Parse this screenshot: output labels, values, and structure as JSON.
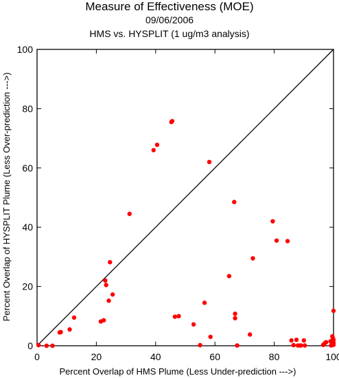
{
  "chart_data": {
    "type": "scatter",
    "title": "Measure of Effectiveness (MOE)",
    "date": "09/06/2006",
    "subtitle": "HMS vs. HYSPLIT  (1 ug/m3 analysis)",
    "xlabel": "Percent Overlap of HMS Plume (Less Under-prediction --->)",
    "ylabel": "Percent Overlap of HYSPLIT Plume (Less Over-prediction --->)",
    "xlim": [
      0,
      100
    ],
    "ylim": [
      0,
      100
    ],
    "xticks": [
      0,
      20,
      40,
      60,
      80,
      100
    ],
    "yticks": [
      0,
      20,
      40,
      60,
      80,
      100
    ],
    "reference_line": "y = x",
    "point_color": "#ff0000",
    "points": [
      [
        0.5,
        0.2
      ],
      [
        3.2,
        0
      ],
      [
        5.2,
        0
      ],
      [
        7.6,
        4.5
      ],
      [
        8.0,
        4.6
      ],
      [
        11.0,
        5.5
      ],
      [
        12.5,
        9.5
      ],
      [
        21.5,
        8.2
      ],
      [
        22.5,
        8.6
      ],
      [
        23.0,
        22.0
      ],
      [
        23.3,
        20.5
      ],
      [
        24.2,
        15.2
      ],
      [
        24.6,
        28.2
      ],
      [
        25.5,
        17.3
      ],
      [
        31.2,
        44.5
      ],
      [
        39.3,
        66.0
      ],
      [
        40.5,
        67.8
      ],
      [
        45.3,
        75.5
      ],
      [
        45.6,
        75.8
      ],
      [
        46.5,
        9.8
      ],
      [
        47.8,
        10.0
      ],
      [
        52.8,
        7.2
      ],
      [
        55.0,
        0.2
      ],
      [
        56.5,
        14.5
      ],
      [
        58.1,
        62.0
      ],
      [
        58.5,
        3.0
      ],
      [
        64.8,
        23.5
      ],
      [
        66.5,
        48.5
      ],
      [
        66.8,
        10.8
      ],
      [
        66.8,
        9.3
      ],
      [
        67.5,
        0.1
      ],
      [
        71.8,
        3.8
      ],
      [
        72.8,
        29.5
      ],
      [
        79.5,
        42.0
      ],
      [
        80.8,
        35.5
      ],
      [
        84.5,
        35.3
      ],
      [
        85.8,
        1.8
      ],
      [
        86.5,
        0.2
      ],
      [
        87.5,
        2.0
      ],
      [
        88.0,
        0.1
      ],
      [
        88.8,
        0.1
      ],
      [
        89.0,
        0.1
      ],
      [
        90.0,
        1.8
      ],
      [
        90.3,
        0.1
      ],
      [
        96.5,
        0.3
      ],
      [
        97.0,
        0.8
      ],
      [
        97.5,
        1.2
      ],
      [
        99.0,
        1.5
      ],
      [
        99.5,
        0.5
      ],
      [
        99.6,
        3.2
      ],
      [
        99.8,
        2.5
      ],
      [
        100.0,
        11.8
      ],
      [
        100.0,
        2.0
      ],
      [
        100.0,
        1.0
      ],
      [
        100.0,
        0.3
      ],
      [
        99.2,
        0.1
      ]
    ]
  }
}
